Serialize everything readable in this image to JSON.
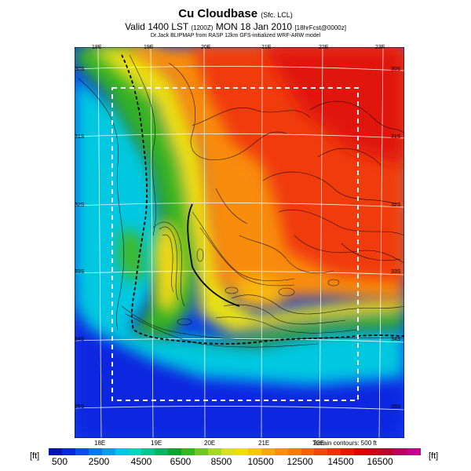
{
  "title": {
    "main": "Cu Cloudbase",
    "main_small": "(Sfc. LCL)",
    "valid": "Valid 1400 LST",
    "valid_small": "(1200Z)",
    "date": "MON 18 Jan 2010",
    "date_small": "[18hrFcst@0000z]",
    "credit": "Dr.Jack BLIPMAP from RASP 12km GFS-initialized WRF-ARW model"
  },
  "map": {
    "lon_labels_top": [
      "18E",
      "19E",
      "20E",
      "21E",
      "22E",
      "23E"
    ],
    "lon_labels_bottom": [
      "18E",
      "19E",
      "20E",
      "21E",
      "22E"
    ],
    "lat_labels_left": [
      "30S",
      "31S",
      "32S",
      "33S",
      "34S",
      "35S"
    ],
    "lat_labels_right": [
      "30S",
      "31S",
      "32S",
      "33S",
      "34S",
      "35S"
    ],
    "terrain_note": "Terrain contours: 500 ft"
  },
  "colorbar": {
    "unit_left": "[ft]",
    "unit_right": "[ft]",
    "tick_values": [
      "500",
      "2500",
      "4500",
      "6500",
      "8500",
      "10500",
      "12500",
      "14500",
      "16500"
    ],
    "colors": [
      "#0010c0",
      "#0028e0",
      "#0050f0",
      "#0078f0",
      "#00a0f0",
      "#00c8e8",
      "#00d8c0",
      "#00c890",
      "#00b860",
      "#00a830",
      "#30b820",
      "#70c820",
      "#a8d820",
      "#d8e020",
      "#f0e000",
      "#f8c800",
      "#f8a800",
      "#f89000",
      "#f87800",
      "#f86000",
      "#f04800",
      "#f03000",
      "#e81800",
      "#e00000",
      "#d00018",
      "#c00030",
      "#c00060",
      "#c80090"
    ]
  }
}
